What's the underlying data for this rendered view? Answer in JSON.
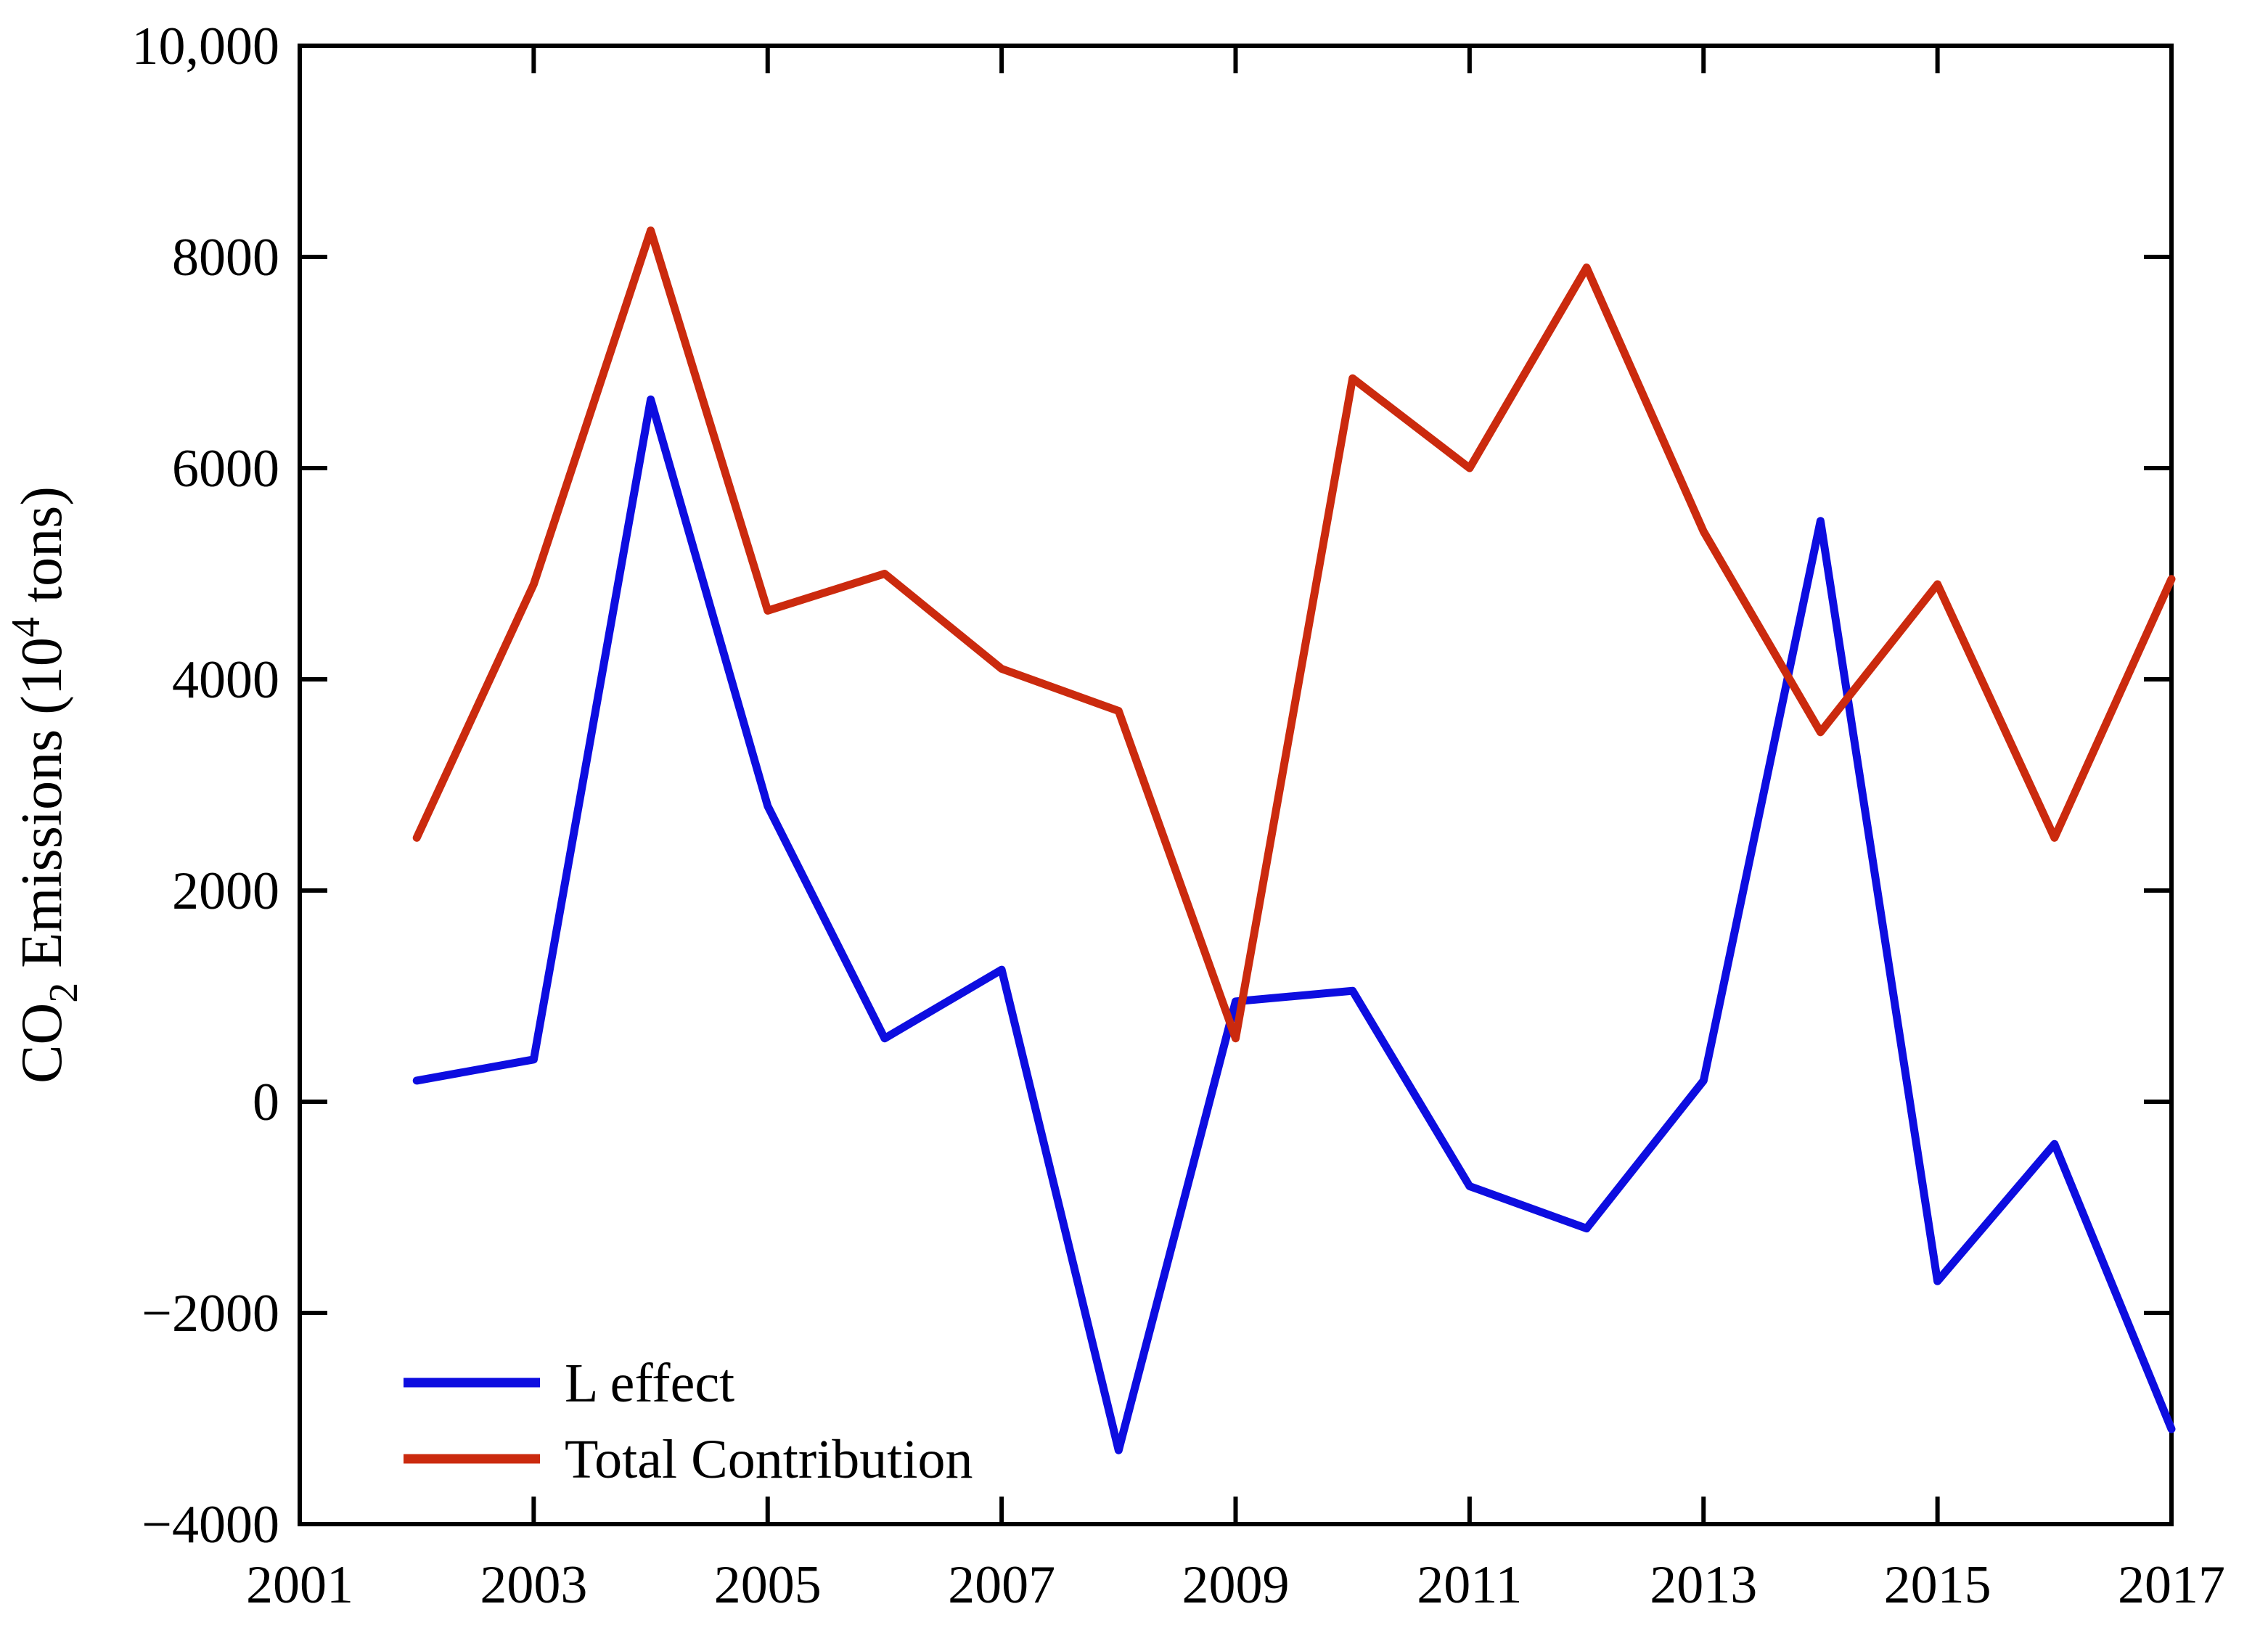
{
  "figure": {
    "background": "#ffffff",
    "axis_color": "#000000",
    "ylabel_parts": {
      "pre": "CO",
      "sub": "2",
      "mid": " Emissions (10",
      "sup": "4",
      "post": " tons)"
    },
    "y_ticks": [
      {
        "v": 10000,
        "label": "10,000"
      },
      {
        "v": 8000,
        "label": "8000"
      },
      {
        "v": 6000,
        "label": "6000"
      },
      {
        "v": 4000,
        "label": "4000"
      },
      {
        "v": 2000,
        "label": "2000"
      },
      {
        "v": 0,
        "label": "0"
      },
      {
        "v": -2000,
        "label": "−2000"
      },
      {
        "v": -4000,
        "label": "−4000"
      }
    ],
    "x_ticks": [
      {
        "v": 2001,
        "label": "2001"
      },
      {
        "v": 2003,
        "label": "2003"
      },
      {
        "v": 2005,
        "label": "2005"
      },
      {
        "v": 2007,
        "label": "2007"
      },
      {
        "v": 2009,
        "label": "2009"
      },
      {
        "v": 2011,
        "label": "2011"
      },
      {
        "v": 2013,
        "label": "2013"
      },
      {
        "v": 2015,
        "label": "2015"
      },
      {
        "v": 2017,
        "label": "2017"
      }
    ],
    "legend": [
      {
        "name": "L effect",
        "color": "#0d0de0"
      },
      {
        "name": "Total Contribution",
        "color": "#cb2a0e"
      }
    ]
  },
  "chart_data": {
    "type": "line",
    "title": "",
    "xlabel": "",
    "ylabel": "CO2 Emissions (10^4 tons)",
    "xlim": [
      2001,
      2017
    ],
    "ylim": [
      -4000,
      10000
    ],
    "x_tick_step": 2,
    "y_tick_step": 2000,
    "grid": false,
    "legend_position": "lower-left-inside",
    "x": [
      2002,
      2003,
      2004,
      2005,
      2006,
      2007,
      2008,
      2009,
      2010,
      2011,
      2012,
      2013,
      2014,
      2015,
      2016,
      2017
    ],
    "series": [
      {
        "name": "L effect",
        "color": "#0d0de0",
        "values": [
          200,
          400,
          6650,
          2800,
          600,
          1250,
          -3300,
          950,
          1050,
          -800,
          -1200,
          200,
          5500,
          -1700,
          -400,
          -3100
        ]
      },
      {
        "name": "Total Contribution",
        "color": "#cb2a0e",
        "values": [
          2500,
          4900,
          8250,
          4650,
          5000,
          4100,
          3700,
          600,
          6850,
          6000,
          7900,
          5400,
          3500,
          4900,
          2500,
          4950
        ]
      }
    ]
  }
}
